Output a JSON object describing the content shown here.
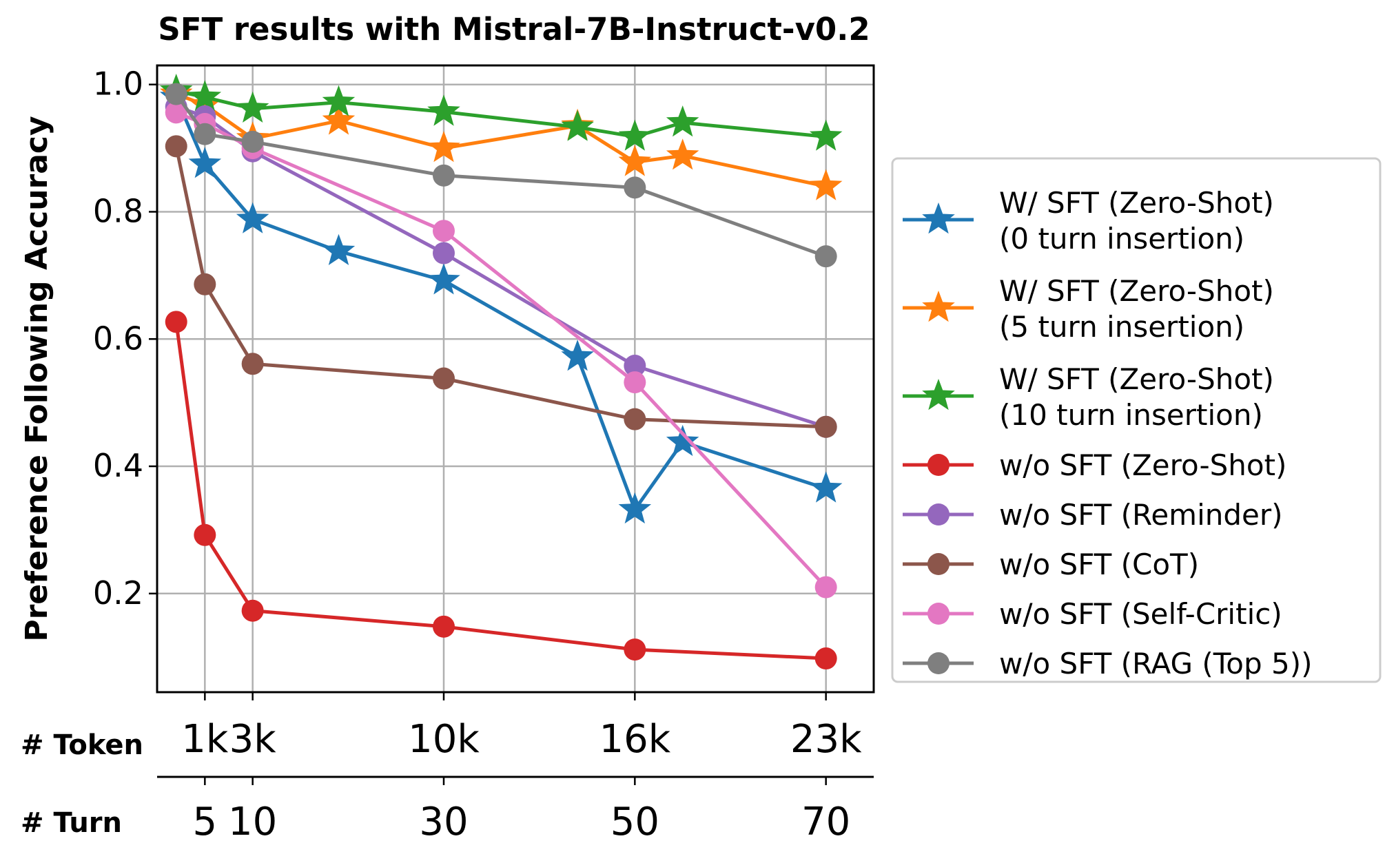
{
  "chart_data": {
    "type": "line",
    "title": "SFT results with Mistral-7B-Instruct-v0.2",
    "ylabel": "Preference Following Accuracy",
    "ylim": [
      0.045,
      1.03
    ],
    "xlim": [
      0,
      75
    ],
    "yticks": [
      0.2,
      0.4,
      0.6,
      0.8,
      1.0
    ],
    "ytick_labels": [
      "0.2",
      "0.4",
      "0.6",
      "0.8",
      "1.0"
    ],
    "grid": true,
    "legend_position": "right, outside plot",
    "token_axis": {
      "label": "# Token",
      "positions": [
        5,
        10,
        30,
        50,
        70
      ],
      "tick_labels": [
        "1k",
        "3k",
        "10k",
        "16k",
        "23k"
      ]
    },
    "turn_axis": {
      "label": "# Turn",
      "positions": [
        5,
        10,
        30,
        50,
        70
      ],
      "tick_labels": [
        "5",
        "10",
        "30",
        "50",
        "70"
      ]
    },
    "series": [
      {
        "name": "W/ SFT (Zero-Shot)\n(0 turn insertion)",
        "color": "#1f77b4",
        "marker": "star",
        "x": [
          2,
          5,
          10,
          19,
          30,
          44,
          50,
          55,
          70
        ],
        "y": [
          0.98,
          0.875,
          0.788,
          0.738,
          0.692,
          0.572,
          0.332,
          0.438,
          0.365
        ]
      },
      {
        "name": "W/ SFT (Zero-Shot)\n(5 turn insertion)",
        "color": "#ff7f0e",
        "marker": "star",
        "x": [
          2,
          5,
          10,
          19,
          30,
          44,
          50,
          55,
          70
        ],
        "y": [
          0.985,
          0.968,
          0.915,
          0.943,
          0.9,
          0.935,
          0.878,
          0.888,
          0.84
        ]
      },
      {
        "name": "W/ SFT (Zero-Shot)\n(10 turn insertion)",
        "color": "#2ca02c",
        "marker": "star",
        "x": [
          2,
          5,
          10,
          19,
          30,
          44,
          50,
          55,
          70
        ],
        "y": [
          0.99,
          0.98,
          0.962,
          0.972,
          0.957,
          0.933,
          0.918,
          0.94,
          0.918
        ]
      },
      {
        "name": "w/o SFT (Zero-Shot)",
        "color": "#d62728",
        "marker": "circle",
        "x": [
          2,
          5,
          10,
          30,
          50,
          70
        ],
        "y": [
          0.627,
          0.292,
          0.173,
          0.148,
          0.112,
          0.098
        ]
      },
      {
        "name": "w/o SFT (Reminder)",
        "color": "#9467bd",
        "marker": "circle",
        "x": [
          2,
          5,
          10,
          30,
          50,
          70
        ],
        "y": [
          0.965,
          0.95,
          0.895,
          0.735,
          0.558,
          0.462
        ]
      },
      {
        "name": "w/o SFT (CoT)",
        "color": "#8c564b",
        "marker": "circle",
        "x": [
          2,
          5,
          10,
          30,
          50,
          70
        ],
        "y": [
          0.903,
          0.686,
          0.561,
          0.538,
          0.474,
          0.462
        ]
      },
      {
        "name": "w/o SFT (Self-Critic)",
        "color": "#e377c2",
        "marker": "circle",
        "x": [
          2,
          5,
          10,
          30,
          50,
          70
        ],
        "y": [
          0.956,
          0.938,
          0.9,
          0.77,
          0.532,
          0.21
        ]
      },
      {
        "name": "w/o SFT (RAG (Top 5))",
        "color": "#7f7f7f",
        "marker": "circle",
        "x": [
          2,
          5,
          10,
          30,
          50,
          70
        ],
        "y": [
          0.985,
          0.922,
          0.91,
          0.857,
          0.838,
          0.73
        ]
      }
    ]
  }
}
